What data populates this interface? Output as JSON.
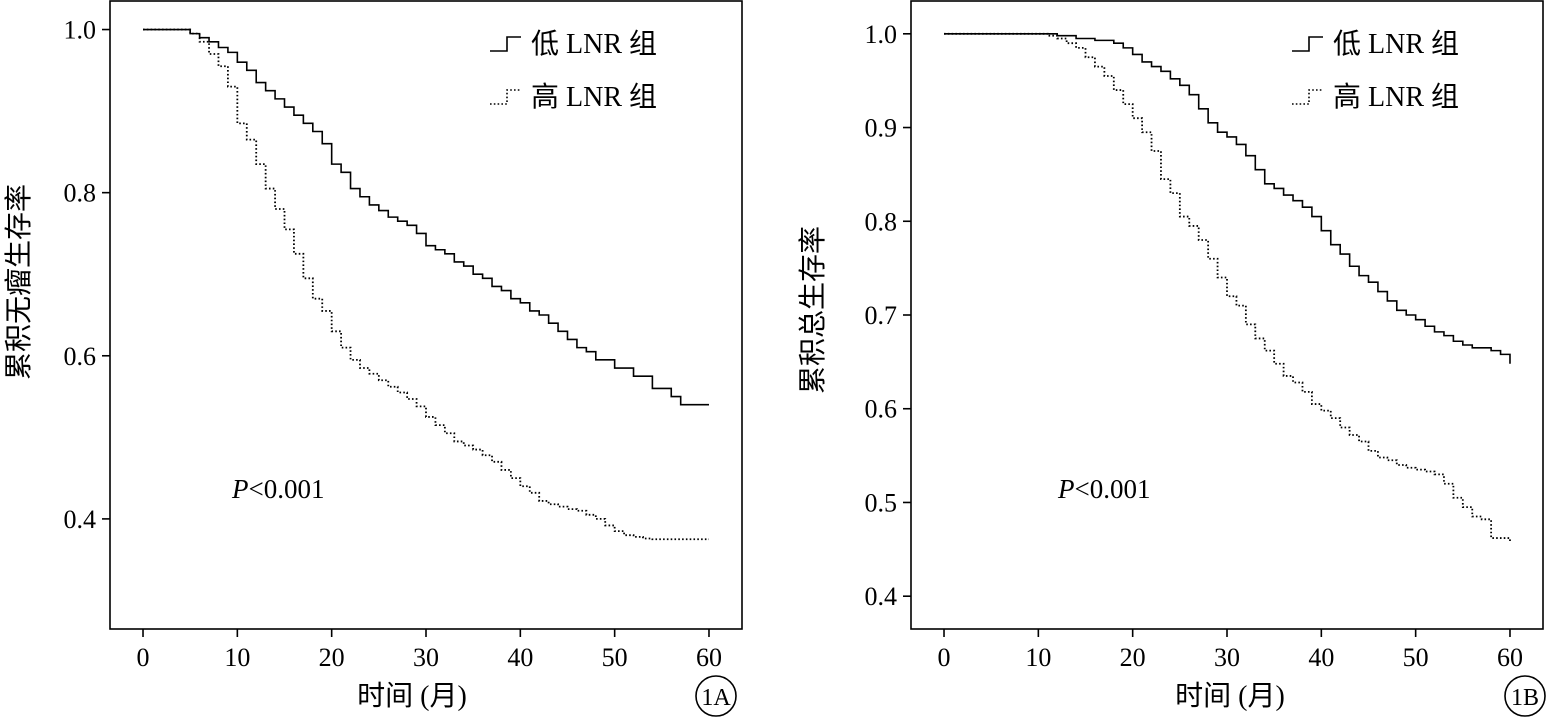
{
  "chart_data": [
    {
      "type": "line",
      "step": true,
      "panel_label": "1A",
      "xlabel": "时间 (月)",
      "ylabel": "累积无瘤生存率",
      "xlim": [
        -3.5,
        63.5
      ],
      "ylim": [
        0.265,
        1.035
      ],
      "xticks": [
        0,
        10,
        20,
        30,
        40,
        50,
        60
      ],
      "yticks": [
        0.4,
        0.6,
        0.8,
        1.0
      ],
      "ytick_labels": [
        "0.4",
        "0.6",
        "0.8",
        "1.0"
      ],
      "grid": false,
      "legend_position": "top-right",
      "annotation": {
        "prefix": "P",
        "value": "<0.001"
      },
      "series": [
        {
          "name": "低 LNR 组",
          "style": "solid",
          "x": [
            0,
            5,
            6,
            7,
            8,
            9,
            10,
            11,
            12,
            13,
            14,
            15,
            16,
            17,
            18,
            19,
            20,
            21,
            22,
            23,
            24,
            25,
            26,
            27,
            28,
            29,
            30,
            31,
            32,
            33,
            34,
            35,
            36,
            37,
            38,
            39,
            40,
            41,
            42,
            43,
            44,
            45,
            46,
            47,
            48,
            50,
            52,
            54,
            56,
            57,
            60
          ],
          "y": [
            1.0,
            0.995,
            0.99,
            0.985,
            0.978,
            0.972,
            0.96,
            0.95,
            0.935,
            0.925,
            0.915,
            0.905,
            0.895,
            0.885,
            0.875,
            0.86,
            0.835,
            0.825,
            0.805,
            0.795,
            0.785,
            0.778,
            0.77,
            0.765,
            0.76,
            0.75,
            0.735,
            0.73,
            0.725,
            0.715,
            0.71,
            0.7,
            0.695,
            0.685,
            0.68,
            0.67,
            0.665,
            0.655,
            0.65,
            0.64,
            0.63,
            0.62,
            0.61,
            0.605,
            0.595,
            0.585,
            0.575,
            0.56,
            0.55,
            0.54,
            0.54
          ]
        },
        {
          "name": "高 LNR 组",
          "style": "dotted",
          "x": [
            0,
            5,
            6,
            7,
            8,
            9,
            10,
            11,
            12,
            13,
            14,
            15,
            16,
            17,
            18,
            19,
            20,
            21,
            22,
            23,
            24,
            25,
            26,
            27,
            28,
            29,
            30,
            31,
            32,
            33,
            34,
            35,
            36,
            37,
            38,
            39,
            40,
            41,
            42,
            43,
            44,
            45,
            46,
            47,
            48,
            49,
            50,
            51,
            52,
            53,
            54,
            60
          ],
          "y": [
            1.0,
            0.995,
            0.985,
            0.97,
            0.955,
            0.93,
            0.885,
            0.865,
            0.835,
            0.805,
            0.78,
            0.755,
            0.725,
            0.695,
            0.67,
            0.655,
            0.63,
            0.61,
            0.595,
            0.585,
            0.578,
            0.57,
            0.562,
            0.555,
            0.547,
            0.538,
            0.525,
            0.515,
            0.505,
            0.495,
            0.49,
            0.485,
            0.478,
            0.47,
            0.46,
            0.45,
            0.44,
            0.432,
            0.422,
            0.418,
            0.415,
            0.412,
            0.41,
            0.405,
            0.4,
            0.392,
            0.385,
            0.38,
            0.378,
            0.376,
            0.375,
            0.375
          ]
        }
      ]
    },
    {
      "type": "line",
      "step": true,
      "panel_label": "1B",
      "xlabel": "时间 (月)",
      "ylabel": "累积总生存率",
      "xlim": [
        -3.5,
        63.5
      ],
      "ylim": [
        0.365,
        1.035
      ],
      "xticks": [
        0,
        10,
        20,
        30,
        40,
        50,
        60
      ],
      "yticks": [
        0.4,
        0.5,
        0.6,
        0.7,
        0.8,
        0.9,
        1.0
      ],
      "ytick_labels": [
        "0.4",
        "0.5",
        "0.6",
        "0.7",
        "0.8",
        "0.9",
        "1.0"
      ],
      "grid": false,
      "legend_position": "top-right",
      "annotation": {
        "prefix": "P",
        "value": "<0.001"
      },
      "series": [
        {
          "name": "低 LNR 组",
          "style": "solid",
          "x": [
            0,
            12,
            14,
            16,
            18,
            19,
            20,
            21,
            22,
            23,
            24,
            25,
            26,
            27,
            28,
            29,
            30,
            31,
            32,
            33,
            34,
            35,
            36,
            37,
            38,
            39,
            40,
            41,
            42,
            43,
            44,
            45,
            46,
            47,
            48,
            49,
            50,
            51,
            52,
            53,
            54,
            55,
            56,
            57,
            58,
            59,
            60
          ],
          "y": [
            1.0,
            0.998,
            0.995,
            0.993,
            0.99,
            0.985,
            0.978,
            0.97,
            0.965,
            0.96,
            0.952,
            0.945,
            0.935,
            0.92,
            0.905,
            0.895,
            0.89,
            0.882,
            0.87,
            0.855,
            0.84,
            0.835,
            0.828,
            0.822,
            0.815,
            0.805,
            0.79,
            0.775,
            0.765,
            0.752,
            0.742,
            0.735,
            0.725,
            0.715,
            0.705,
            0.7,
            0.695,
            0.688,
            0.682,
            0.678,
            0.672,
            0.668,
            0.665,
            0.665,
            0.662,
            0.658,
            0.648
          ]
        },
        {
          "name": "高 LNR 组",
          "style": "dotted",
          "x": [
            0,
            11,
            12,
            13,
            14,
            15,
            16,
            17,
            18,
            19,
            20,
            21,
            22,
            23,
            24,
            25,
            26,
            27,
            28,
            29,
            30,
            31,
            32,
            33,
            34,
            35,
            36,
            37,
            38,
            39,
            40,
            41,
            42,
            43,
            44,
            45,
            46,
            47,
            48,
            49,
            50,
            51,
            52,
            53,
            54,
            55,
            56,
            57,
            58,
            60
          ],
          "y": [
            1.0,
            0.998,
            0.995,
            0.99,
            0.985,
            0.975,
            0.965,
            0.955,
            0.94,
            0.925,
            0.91,
            0.895,
            0.875,
            0.845,
            0.83,
            0.805,
            0.795,
            0.78,
            0.76,
            0.74,
            0.72,
            0.71,
            0.69,
            0.675,
            0.662,
            0.648,
            0.635,
            0.628,
            0.618,
            0.605,
            0.598,
            0.59,
            0.58,
            0.572,
            0.565,
            0.555,
            0.548,
            0.545,
            0.54,
            0.537,
            0.535,
            0.533,
            0.53,
            0.52,
            0.505,
            0.495,
            0.485,
            0.482,
            0.462,
            0.458
          ]
        }
      ]
    }
  ]
}
